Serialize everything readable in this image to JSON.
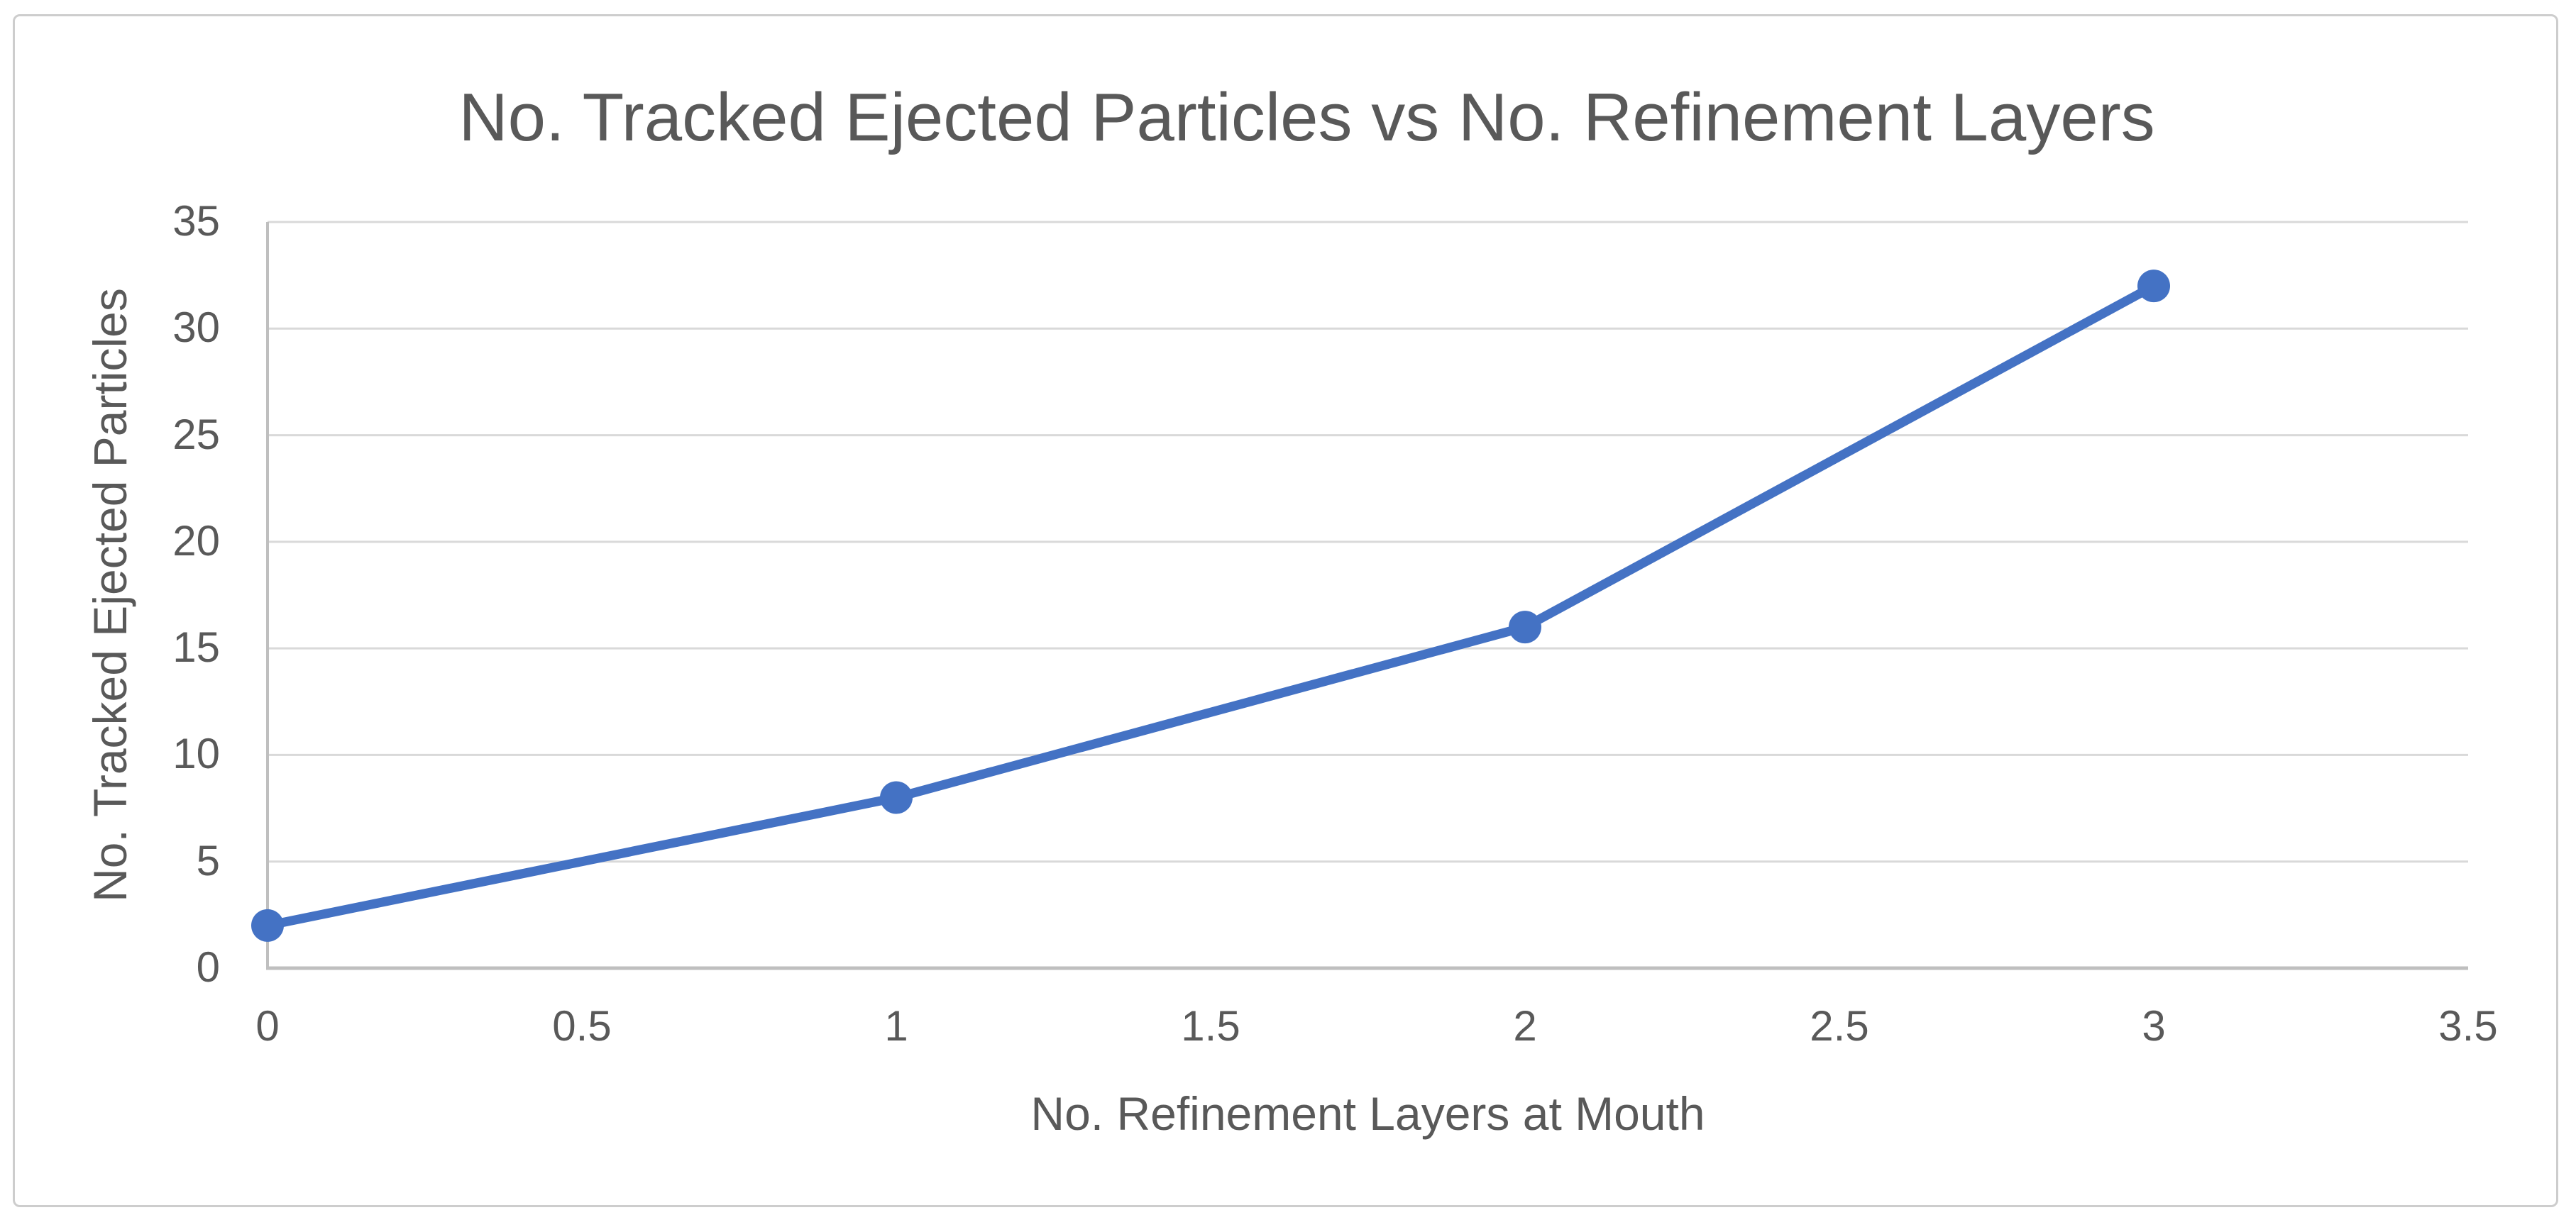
{
  "chart_data": {
    "type": "line",
    "title": "No. Tracked Ejected Particles vs No. Refinement Layers",
    "xlabel": "No. Refinement Layers at Mouth",
    "ylabel": "No. Tracked Ejected Particles",
    "series": [
      {
        "x": [
          0,
          1,
          2,
          3
        ],
        "y": [
          2,
          8,
          16,
          32
        ],
        "color": "#4472C4",
        "marker": "circle"
      }
    ],
    "xlim": [
      0,
      3.5
    ],
    "ylim": [
      0,
      35
    ],
    "xticks": {
      "values": [
        0,
        0.5,
        1,
        1.5,
        2,
        2.5,
        3,
        3.5
      ],
      "labels": [
        "0",
        "0.5",
        "1",
        "1.5",
        "2",
        "2.5",
        "3",
        "3.5"
      ]
    },
    "yticks": {
      "values": [
        0,
        5,
        10,
        15,
        20,
        25,
        30,
        35
      ],
      "labels": [
        "0",
        "5",
        "10",
        "15",
        "20",
        "25",
        "30",
        "35"
      ]
    },
    "grid": "horizontal",
    "legend": "none",
    "colors": {
      "text": "#595959",
      "gridline": "#D9D9D9",
      "axis": "#BFBFBF",
      "frame_border": "#CDCDCD",
      "background": "#FFFFFF"
    }
  }
}
